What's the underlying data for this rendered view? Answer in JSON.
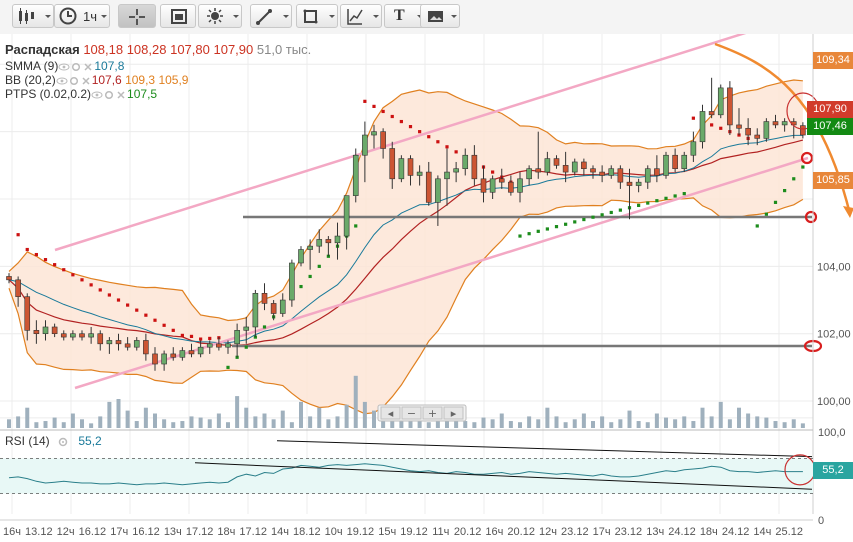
{
  "toolbar": {
    "timeframe": "1ч",
    "items": [
      {
        "name": "candle-type-button",
        "icon": "candlestick-icon",
        "dropdown": true
      },
      {
        "name": "timeframe-button",
        "icon": "clock-icon",
        "dropdown": true
      },
      {
        "name": "crosshair-button",
        "icon": "crosshair-icon",
        "active": true
      },
      {
        "name": "chart-settings-button",
        "icon": "chart-box-icon"
      },
      {
        "name": "indicators-button",
        "icon": "sun-icon",
        "dropdown": true
      },
      {
        "name": "line-tools-button",
        "icon": "line-tool-icon",
        "dropdown": true
      },
      {
        "name": "shape-tools-button",
        "icon": "rectangle-icon",
        "dropdown": true
      },
      {
        "name": "fibonacci-tools-button",
        "icon": "fibonacci-icon",
        "dropdown": true
      },
      {
        "name": "text-tool-button",
        "icon": "text-icon",
        "label": "T",
        "dropdown": true
      },
      {
        "name": "image-tool-button",
        "icon": "image-icon",
        "dropdown": true
      }
    ]
  },
  "legend": {
    "symbol": "Распадская",
    "open": "108,18",
    "high": "108,28",
    "low": "107,80",
    "close": "107,90",
    "volume": "51,0 тыс.",
    "indicators": [
      {
        "name": "SMMA (9)",
        "values": [
          "107,8"
        ],
        "colors": [
          "#1a7a9a"
        ]
      },
      {
        "name": "BB (20,2)",
        "values": [
          "107,6",
          "109,3",
          "105,9"
        ],
        "colors": [
          "#b22222",
          "#e08020",
          "#e08020"
        ]
      },
      {
        "name": "PTPS (0.02,0.2)",
        "values": [
          "107,5"
        ],
        "colors": [
          "#1c8c1c"
        ]
      }
    ]
  },
  "rsi_legend": {
    "name": "RSI (14)",
    "value": "55,2"
  },
  "price_tags": [
    {
      "value": "109,34",
      "bg": "#e8873a"
    },
    {
      "value": "107,90",
      "bg": "#d13b2b"
    },
    {
      "value": "107,46",
      "bg": "#138a13"
    },
    {
      "value": "105,85",
      "bg": "#e8873a"
    }
  ],
  "rsi_tag": {
    "value": "55,2",
    "bg": "#2aa5a0"
  },
  "zoom_buttons": [
    "◂",
    "−",
    "+",
    "▸"
  ],
  "chart_data": [
    {
      "type": "candlestick",
      "ylim": [
        99.2,
        110.9
      ],
      "yticks": [
        "104,00",
        "102,00",
        "100,00"
      ],
      "xlabels": [
        "16ч",
        "13.12",
        "12ч",
        "16.12",
        "17ч",
        "16.12",
        "13ч",
        "17.12",
        "18ч",
        "17.12",
        "14ч",
        "18.12",
        "10ч",
        "19.12",
        "15ч",
        "19.12",
        "11ч",
        "20.12",
        "16ч",
        "20.12",
        "12ч",
        "23.12",
        "17ч",
        "23.12",
        "13ч",
        "24.12",
        "18ч",
        "24.12",
        "14ч",
        "25.12"
      ],
      "colors": {
        "up": "#6aaa6a",
        "down": "#cc5533",
        "bb_upper": "#e08020",
        "bb_mid": "#b22222",
        "smma": "#1a7a9a",
        "psar_up": "#1c8c1c",
        "psar_down": "#cc1111",
        "volume": "#9fb0bd",
        "channel": "#f3a8c4"
      },
      "candles": [
        [
          103.7,
          103.8,
          103.5,
          103.6
        ],
        [
          103.6,
          103.7,
          102.8,
          103.1
        ],
        [
          103.1,
          103.2,
          101.8,
          102.1
        ],
        [
          102.1,
          102.4,
          101.7,
          102.0
        ],
        [
          102.0,
          102.4,
          101.8,
          102.2
        ],
        [
          102.2,
          102.3,
          101.9,
          102.0
        ],
        [
          102.0,
          102.1,
          101.8,
          101.9
        ],
        [
          101.9,
          102.1,
          101.8,
          102.0
        ],
        [
          102.0,
          102.1,
          101.8,
          101.9
        ],
        [
          101.9,
          102.2,
          101.7,
          102.0
        ],
        [
          102.0,
          102.1,
          101.5,
          101.7
        ],
        [
          101.7,
          101.9,
          101.4,
          101.8
        ],
        [
          101.8,
          102.0,
          101.5,
          101.7
        ],
        [
          101.7,
          101.9,
          101.5,
          101.6
        ],
        [
          101.6,
          101.9,
          101.5,
          101.8
        ],
        [
          101.8,
          102.0,
          101.2,
          101.4
        ],
        [
          101.4,
          101.6,
          100.9,
          101.1
        ],
        [
          101.1,
          101.5,
          100.9,
          101.4
        ],
        [
          101.4,
          101.6,
          101.2,
          101.3
        ],
        [
          101.3,
          101.6,
          101.2,
          101.5
        ],
        [
          101.5,
          101.7,
          101.3,
          101.4
        ],
        [
          101.4,
          101.8,
          101.3,
          101.6
        ],
        [
          101.6,
          101.8,
          101.4,
          101.7
        ],
        [
          101.7,
          101.9,
          101.5,
          101.6
        ],
        [
          101.6,
          101.8,
          101.4,
          101.7
        ],
        [
          101.7,
          102.3,
          101.3,
          102.1
        ],
        [
          102.1,
          102.5,
          101.7,
          102.2
        ],
        [
          102.2,
          103.3,
          101.9,
          103.2
        ],
        [
          103.2,
          103.5,
          102.7,
          102.9
        ],
        [
          102.9,
          103.0,
          102.4,
          102.6
        ],
        [
          102.6,
          103.2,
          102.5,
          103.0
        ],
        [
          103.0,
          104.2,
          102.8,
          104.1
        ],
        [
          104.1,
          104.6,
          104.0,
          104.5
        ],
        [
          104.5,
          104.8,
          103.9,
          104.6
        ],
        [
          104.6,
          105.1,
          104.4,
          104.8
        ],
        [
          104.8,
          104.9,
          104.3,
          104.7
        ],
        [
          104.7,
          105.3,
          104.2,
          104.9
        ],
        [
          104.9,
          106.1,
          104.5,
          106.1
        ],
        [
          106.1,
          107.5,
          105.9,
          107.3
        ],
        [
          107.3,
          108.3,
          106.5,
          107.9
        ],
        [
          107.9,
          108.2,
          107.5,
          108.0
        ],
        [
          108.0,
          108.1,
          107.2,
          107.5
        ],
        [
          107.5,
          107.7,
          106.3,
          106.6
        ],
        [
          106.6,
          107.3,
          106.5,
          107.2
        ],
        [
          107.2,
          107.3,
          106.4,
          106.7
        ],
        [
          106.7,
          107.0,
          106.4,
          106.8
        ],
        [
          106.8,
          107.1,
          105.8,
          105.9
        ],
        [
          105.9,
          106.7,
          105.2,
          106.6
        ],
        [
          106.6,
          107.5,
          105.8,
          106.8
        ],
        [
          106.8,
          107.1,
          106.5,
          106.9
        ],
        [
          106.9,
          107.5,
          106.7,
          107.3
        ],
        [
          107.3,
          107.6,
          106.4,
          106.6
        ],
        [
          106.6,
          107.0,
          105.9,
          106.2
        ],
        [
          106.2,
          106.7,
          106.0,
          106.6
        ],
        [
          106.6,
          106.9,
          106.3,
          106.5
        ],
        [
          106.5,
          106.7,
          106.1,
          106.2
        ],
        [
          106.2,
          106.8,
          105.9,
          106.6
        ],
        [
          106.6,
          107.0,
          106.4,
          106.9
        ],
        [
          106.9,
          108.0,
          106.6,
          106.8
        ],
        [
          106.8,
          107.4,
          106.7,
          107.2
        ],
        [
          107.2,
          107.3,
          106.9,
          107.0
        ],
        [
          107.0,
          107.4,
          106.5,
          106.8
        ],
        [
          106.8,
          107.2,
          106.7,
          107.1
        ],
        [
          107.1,
          107.2,
          106.7,
          106.9
        ],
        [
          106.9,
          107.0,
          106.6,
          106.8
        ],
        [
          106.8,
          107.0,
          106.5,
          106.7
        ],
        [
          106.7,
          107.0,
          106.6,
          106.9
        ],
        [
          106.9,
          107.0,
          106.3,
          106.5
        ],
        [
          106.5,
          106.9,
          105.4,
          106.4
        ],
        [
          106.4,
          106.6,
          106.2,
          106.5
        ],
        [
          106.5,
          107.0,
          106.3,
          106.9
        ],
        [
          106.9,
          107.3,
          106.5,
          106.7
        ],
        [
          106.7,
          107.4,
          106.6,
          107.3
        ],
        [
          107.3,
          107.5,
          106.8,
          106.9
        ],
        [
          106.9,
          107.4,
          106.8,
          107.3
        ],
        [
          107.3,
          108.0,
          107.1,
          107.7
        ],
        [
          107.7,
          108.8,
          107.5,
          108.6
        ],
        [
          108.6,
          109.6,
          108.4,
          108.5
        ],
        [
          108.5,
          109.4,
          108.4,
          109.3
        ],
        [
          109.3,
          109.5,
          107.9,
          108.2
        ],
        [
          108.2,
          108.7,
          107.9,
          108.1
        ],
        [
          108.1,
          108.4,
          107.6,
          107.9
        ],
        [
          107.9,
          108.1,
          107.6,
          107.8
        ],
        [
          107.8,
          108.4,
          107.7,
          108.3
        ],
        [
          108.3,
          108.5,
          108.1,
          108.2
        ],
        [
          108.2,
          108.4,
          108.0,
          108.3
        ],
        [
          108.3,
          108.4,
          107.8,
          108.2
        ],
        [
          108.18,
          108.28,
          107.8,
          107.9
        ]
      ],
      "volume": [
        0.15,
        0.2,
        0.35,
        0.1,
        0.12,
        0.18,
        0.1,
        0.25,
        0.15,
        0.08,
        0.2,
        0.45,
        0.5,
        0.3,
        0.12,
        0.35,
        0.25,
        0.15,
        0.1,
        0.12,
        0.2,
        0.18,
        0.15,
        0.25,
        0.1,
        0.55,
        0.35,
        0.2,
        0.25,
        0.15,
        0.3,
        0.1,
        0.45,
        0.2,
        0.35,
        0.15,
        0.2,
        0.4,
        0.9,
        0.45,
        0.3,
        0.2,
        0.35,
        0.12,
        0.15,
        0.25,
        0.1,
        0.2,
        0.15,
        0.3,
        0.12,
        0.1,
        0.18,
        0.15,
        0.25,
        0.12,
        0.1,
        0.2,
        0.15,
        0.35,
        0.2,
        0.1,
        0.15,
        0.25,
        0.12,
        0.2,
        0.1,
        0.15,
        0.3,
        0.12,
        0.1,
        0.25,
        0.18,
        0.15,
        0.2,
        0.12,
        0.35,
        0.2,
        0.45,
        0.15,
        0.35,
        0.25,
        0.2,
        0.18,
        0.12,
        0.1,
        0.15,
        0.08
      ]
    },
    {
      "type": "line",
      "title": "RSI (14)",
      "ylim": [
        0,
        100
      ],
      "yticks": [
        "100,0",
        "0"
      ],
      "levels": [
        70,
        30
      ],
      "values": [
        48,
        49,
        47,
        44,
        42,
        43,
        44,
        43,
        42,
        42,
        41,
        41,
        42,
        41,
        40,
        41,
        41,
        42,
        41,
        40,
        41,
        42,
        43,
        42,
        43,
        49,
        52,
        50,
        54,
        53,
        58,
        59,
        62,
        61,
        60,
        62,
        63,
        62,
        63,
        64,
        63,
        62,
        60,
        58,
        56,
        55,
        56,
        54,
        53,
        55,
        54,
        52,
        52,
        53,
        54,
        52,
        53,
        55,
        54,
        53,
        52,
        53,
        52,
        51,
        50,
        52,
        50,
        49,
        49,
        50,
        52,
        54,
        56,
        55,
        57,
        58,
        59,
        61,
        60,
        56,
        55,
        55,
        54,
        55,
        56,
        55,
        55,
        55
      ]
    }
  ]
}
